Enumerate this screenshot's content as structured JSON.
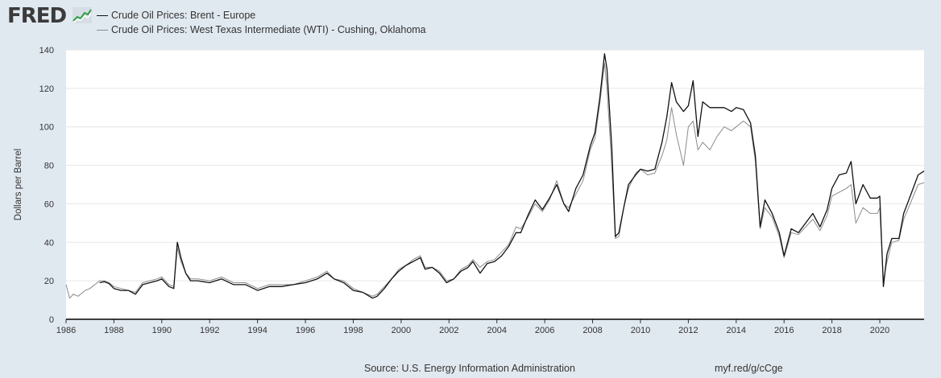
{
  "header": {
    "logo_text": "FRED",
    "logo_icon": "fred-graph-icon"
  },
  "colors": {
    "background": "#e1e9f0",
    "plot_bg": "#ffffff",
    "grid": "#e6e6e6",
    "brent": "#111111",
    "wti": "#8c8c8c"
  },
  "chart_data": {
    "type": "line",
    "title": "",
    "xlabel": "",
    "ylabel": "Dollars per Barrel",
    "ylim": [
      0,
      140
    ],
    "xlim": [
      1986.0,
      2021.85
    ],
    "y_ticks": [
      "0",
      "20",
      "40",
      "60",
      "80",
      "100",
      "120",
      "140"
    ],
    "x_ticks": [
      "1986",
      "1988",
      "1990",
      "1992",
      "1994",
      "1996",
      "1998",
      "2000",
      "2002",
      "2004",
      "2006",
      "2008",
      "2010",
      "2012",
      "2014",
      "2016",
      "2018",
      "2020"
    ],
    "series": [
      {
        "name": "Crude Oil Prices: Brent - Europe",
        "x": [
          1987.4,
          1987.6,
          1987.8,
          1988.0,
          1988.3,
          1988.6,
          1988.9,
          1989.2,
          1989.5,
          1989.8,
          1990.0,
          1990.3,
          1990.5,
          1990.65,
          1990.8,
          1991.0,
          1991.2,
          1991.5,
          1992.0,
          1992.5,
          1993.0,
          1993.5,
          1994.0,
          1994.5,
          1995.0,
          1995.5,
          1996.0,
          1996.5,
          1996.9,
          1997.2,
          1997.6,
          1998.0,
          1998.4,
          1998.8,
          1999.0,
          1999.3,
          1999.6,
          1999.9,
          2000.2,
          2000.5,
          2000.8,
          2001.0,
          2001.3,
          2001.6,
          2001.9,
          2002.2,
          2002.5,
          2002.8,
          2003.0,
          2003.3,
          2003.6,
          2003.9,
          2004.2,
          2004.5,
          2004.8,
          2005.0,
          2005.3,
          2005.6,
          2005.9,
          2006.2,
          2006.5,
          2006.8,
          2007.0,
          2007.3,
          2007.6,
          2007.9,
          2008.1,
          2008.3,
          2008.5,
          2008.6,
          2008.8,
          2008.95,
          2009.1,
          2009.3,
          2009.5,
          2009.8,
          2010.0,
          2010.3,
          2010.6,
          2010.9,
          2011.1,
          2011.3,
          2011.5,
          2011.8,
          2012.0,
          2012.2,
          2012.4,
          2012.6,
          2012.9,
          2013.2,
          2013.5,
          2013.8,
          2014.0,
          2014.3,
          2014.6,
          2014.8,
          2015.0,
          2015.2,
          2015.5,
          2015.8,
          2016.0,
          2016.3,
          2016.6,
          2016.9,
          2017.2,
          2017.5,
          2017.8,
          2018.0,
          2018.3,
          2018.6,
          2018.8,
          2019.0,
          2019.3,
          2019.6,
          2019.9,
          2020.0,
          2020.15,
          2020.3,
          2020.5,
          2020.8,
          2021.0,
          2021.3,
          2021.6,
          2021.85
        ],
        "values": [
          19,
          19.5,
          18.5,
          16,
          15,
          15,
          13,
          18,
          19,
          20,
          21,
          17,
          16,
          40,
          32,
          24,
          20,
          20,
          19,
          21,
          18,
          18,
          15,
          17,
          17,
          18,
          19,
          21,
          24,
          21,
          19,
          15,
          14,
          11,
          12,
          16,
          21,
          25,
          28,
          30,
          32,
          26,
          27,
          24,
          19,
          21,
          25,
          27,
          30,
          24,
          29,
          30,
          33,
          38,
          45,
          45,
          54,
          62,
          57,
          63,
          70,
          60,
          56,
          68,
          75,
          90,
          97,
          115,
          138,
          130,
          90,
          43,
          45,
          58,
          70,
          75,
          78,
          77,
          78,
          92,
          105,
          123,
          113,
          108,
          111,
          124,
          95,
          113,
          110,
          110,
          110,
          108,
          110,
          109,
          102,
          85,
          48,
          62,
          55,
          45,
          33,
          47,
          45,
          50,
          55,
          48,
          57,
          68,
          75,
          76,
          82,
          60,
          70,
          63,
          63,
          64,
          17,
          34,
          42,
          42,
          55,
          65,
          75,
          77
        ]
      },
      {
        "name": "Crude Oil Prices: West Texas Intermediate (WTI) - Cushing, Oklahoma",
        "x": [
          1986.0,
          1986.15,
          1986.3,
          1986.5,
          1986.8,
          1987.0,
          1987.4,
          1987.6,
          1987.8,
          1988.0,
          1988.3,
          1988.6,
          1988.9,
          1989.2,
          1989.5,
          1989.8,
          1990.0,
          1990.3,
          1990.5,
          1990.65,
          1990.8,
          1991.0,
          1991.2,
          1991.5,
          1992.0,
          1992.5,
          1993.0,
          1993.5,
          1994.0,
          1994.5,
          1995.0,
          1995.5,
          1996.0,
          1996.5,
          1996.9,
          1997.2,
          1997.6,
          1998.0,
          1998.4,
          1998.8,
          1999.0,
          1999.3,
          1999.6,
          1999.9,
          2000.2,
          2000.5,
          2000.8,
          2001.0,
          2001.3,
          2001.6,
          2001.9,
          2002.2,
          2002.5,
          2002.8,
          2003.0,
          2003.3,
          2003.6,
          2003.9,
          2004.2,
          2004.5,
          2004.8,
          2005.0,
          2005.3,
          2005.6,
          2005.9,
          2006.2,
          2006.5,
          2006.8,
          2007.0,
          2007.3,
          2007.6,
          2007.9,
          2008.1,
          2008.3,
          2008.5,
          2008.6,
          2008.8,
          2008.95,
          2009.1,
          2009.3,
          2009.5,
          2009.8,
          2010.0,
          2010.3,
          2010.6,
          2010.9,
          2011.1,
          2011.3,
          2011.5,
          2011.8,
          2012.0,
          2012.2,
          2012.4,
          2012.6,
          2012.9,
          2013.2,
          2013.5,
          2013.8,
          2014.0,
          2014.3,
          2014.6,
          2014.8,
          2015.0,
          2015.2,
          2015.5,
          2015.8,
          2016.0,
          2016.3,
          2016.6,
          2016.9,
          2017.2,
          2017.5,
          2017.8,
          2018.0,
          2018.3,
          2018.6,
          2018.8,
          2019.0,
          2019.3,
          2019.6,
          2019.9,
          2020.0,
          2020.15,
          2020.3,
          2020.5,
          2020.8,
          2021.0,
          2021.3,
          2021.6,
          2021.85
        ],
        "values": [
          18,
          11,
          13,
          12,
          15,
          16,
          20,
          20,
          19,
          17,
          16,
          15,
          14,
          19,
          20,
          21,
          22,
          18,
          17,
          37,
          30,
          24,
          21,
          21,
          20,
          22,
          19,
          19,
          16,
          18,
          18,
          18,
          20,
          22,
          25,
          21,
          20,
          16,
          14,
          12,
          13,
          17,
          21,
          26,
          28,
          31,
          33,
          27,
          27,
          25,
          20,
          21,
          26,
          28,
          31,
          27,
          30,
          31,
          35,
          39,
          48,
          47,
          53,
          60,
          56,
          62,
          72,
          60,
          58,
          65,
          72,
          88,
          94,
          112,
          133,
          120,
          80,
          42,
          43,
          58,
          68,
          76,
          78,
          75,
          76,
          85,
          93,
          110,
          96,
          80,
          100,
          103,
          88,
          92,
          88,
          95,
          100,
          98,
          100,
          103,
          100,
          82,
          47,
          58,
          53,
          43,
          32,
          45,
          44,
          48,
          52,
          46,
          54,
          64,
          66,
          68,
          70,
          50,
          58,
          55,
          55,
          58,
          20,
          30,
          40,
          41,
          52,
          61,
          70,
          71
        ]
      }
    ]
  },
  "footer": {
    "source": "Source: U.S. Energy Information Administration",
    "link": "myf.red/g/cCge"
  }
}
